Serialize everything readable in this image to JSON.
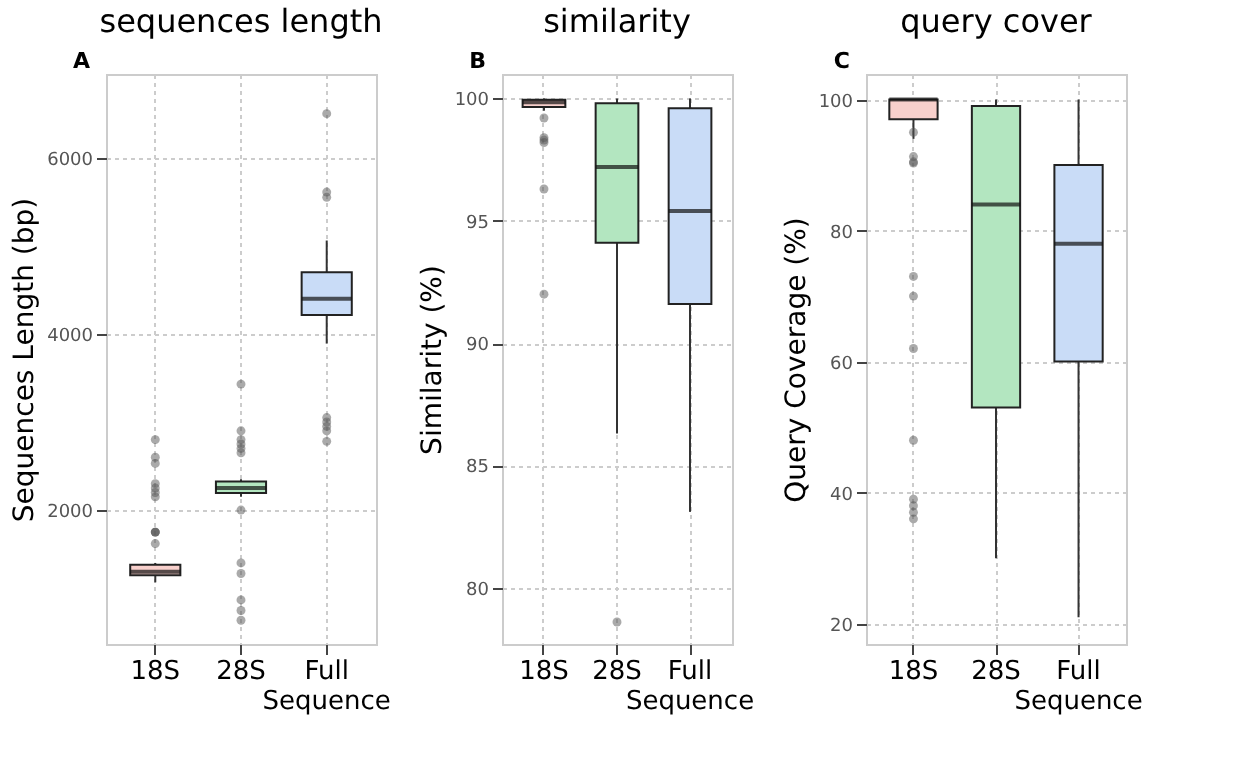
{
  "chart_data": [
    {
      "type": "box",
      "title": "sequences length",
      "ylabel": "Sequences Length (bp)",
      "annotations": [
        "A"
      ],
      "categories": [
        "18S",
        "28S",
        "Full Sequence"
      ],
      "colors": [
        "#f8d0cc",
        "#b3e6c0",
        "#c9dcf7"
      ],
      "boxes": [
        {
          "low": 1180,
          "q1": 1260,
          "median": 1300,
          "q3": 1380,
          "high": 1400,
          "outliers": [
            1620,
            1750,
            1750,
            1750,
            2150,
            2200,
            2250,
            2300,
            2530,
            2600,
            2800
          ]
        },
        {
          "low": 2150,
          "q1": 2195,
          "median": 2250,
          "q3": 2325,
          "high": 2350,
          "outliers": [
            750,
            860,
            980,
            1280,
            1400,
            2000,
            2650,
            2700,
            2750,
            2800,
            2900,
            3430
          ]
        },
        {
          "low": 3890,
          "q1": 4215,
          "median": 4400,
          "q3": 4700,
          "high": 5060,
          "outliers": [
            2780,
            2900,
            2950,
            3000,
            3050,
            5550,
            5610,
            6500
          ]
        }
      ],
      "ylim": [
        480,
        6950
      ],
      "yticks": [
        2000,
        4000,
        6000
      ],
      "grid": true
    },
    {
      "type": "box",
      "title": "similarity",
      "ylabel": "Similarity (%)",
      "annotations": [
        "B"
      ],
      "categories": [
        "18S",
        "28S",
        "Full Sequence"
      ],
      "colors": [
        "#f8d0cc",
        "#b3e6c0",
        "#c9dcf7"
      ],
      "boxes": [
        {
          "low": 99.5,
          "q1": 99.65,
          "median": 99.85,
          "q3": 99.95,
          "high": 100,
          "outliers": [
            92.0,
            96.3,
            98.2,
            98.3,
            98.4,
            99.2
          ]
        },
        {
          "low": 86.3,
          "q1": 94.1,
          "median": 97.2,
          "q3": 99.8,
          "high": 100,
          "outliers": [
            78.6
          ]
        },
        {
          "low": 83.1,
          "q1": 91.6,
          "median": 95.4,
          "q3": 99.6,
          "high": 100
        }
      ],
      "ylim": [
        77.7,
        101
      ],
      "yticks": [
        80,
        85,
        90,
        95,
        100
      ],
      "grid": true
    },
    {
      "type": "box",
      "title": "query cover",
      "ylabel": "Query Coverage (%)",
      "annotations": [
        "C"
      ],
      "categories": [
        "18S",
        "28S",
        "Full Sequence"
      ],
      "colors": [
        "#f8d0cc",
        "#b3e6c0",
        "#c9dcf7"
      ],
      "boxes": [
        {
          "low": 94,
          "q1": 97,
          "median": 100,
          "q3": 100,
          "high": 100,
          "outliers": [
            36,
            37,
            38,
            39,
            48,
            62,
            70,
            73,
            90.3,
            90.5,
            91.3,
            95
          ]
        },
        {
          "low": 30,
          "q1": 53,
          "median": 84,
          "q3": 99,
          "high": 100
        },
        {
          "low": 21,
          "q1": 60,
          "median": 78,
          "q3": 90,
          "high": 100
        }
      ],
      "ylim": [
        16.9,
        103.9
      ],
      "yticks": [
        20,
        40,
        60,
        80,
        100
      ],
      "grid": true
    }
  ]
}
